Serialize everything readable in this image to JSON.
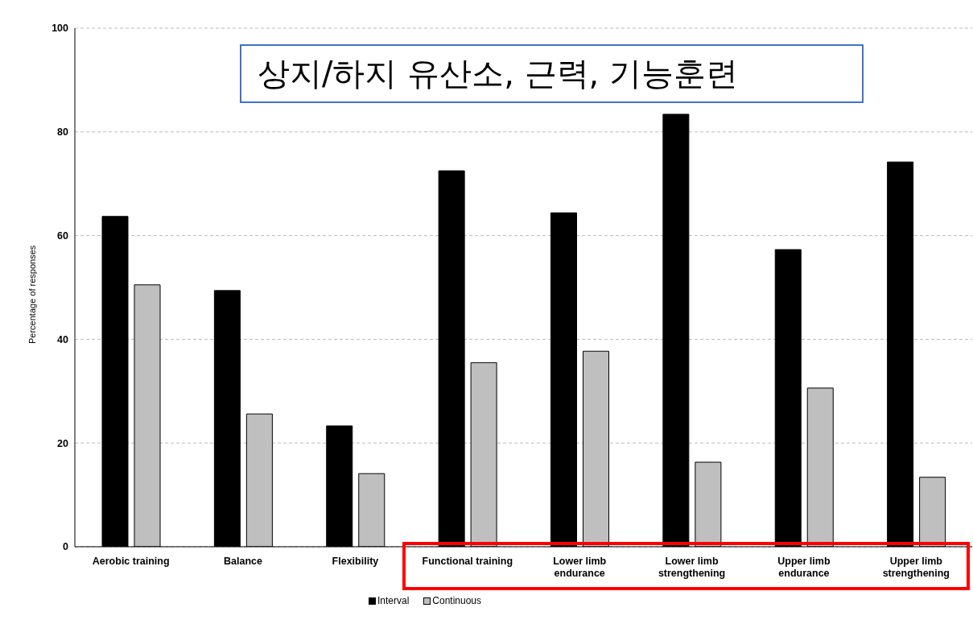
{
  "chart_data": {
    "type": "bar",
    "ylabel": "Percentage of responses",
    "categories": [
      "Aerobic training",
      "Balance",
      "Flexibility",
      "Functional training",
      "Lower limb\nendurance",
      "Lower limb\nstrengthening",
      "Upper limb\nendurance",
      "Upper limb\nstrengthening"
    ],
    "series": [
      {
        "name": "Interval",
        "color": "#000000",
        "values": [
          63.7,
          49.4,
          23.3,
          72.5,
          64.4,
          83.4,
          57.3,
          74.2
        ]
      },
      {
        "name": "Continuous",
        "color": "#bfbfbf",
        "values": [
          50.5,
          25.6,
          14.1,
          35.5,
          37.7,
          16.3,
          30.6,
          13.4
        ]
      }
    ],
    "ylim": [
      0,
      100
    ],
    "yticks": [
      0,
      20,
      40,
      60,
      80,
      100
    ],
    "grid": "y",
    "legend": "bottom",
    "annotations": [
      "상지/하지 유산소, 근력, 기능훈련"
    ]
  }
}
